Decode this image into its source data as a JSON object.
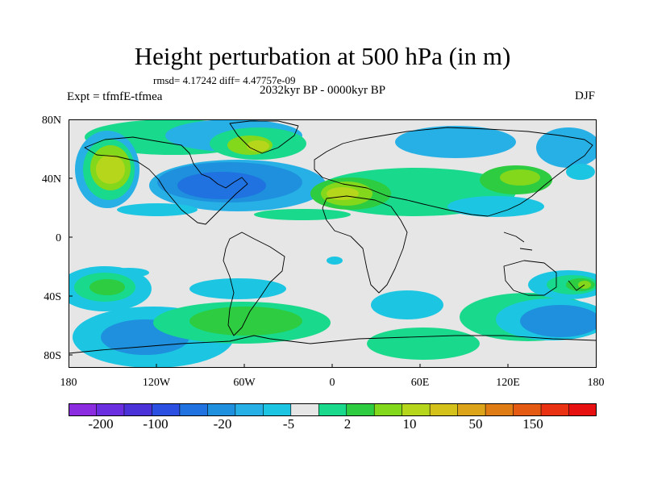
{
  "header": {
    "title": "Height perturbation at 500 hPa (in m)",
    "stats": "rmsd= 4.17242 diff= 4.47757e-09",
    "period": "2032kyr BP - 0000kyr BP",
    "experiment": "Expt = tfmfE-tfmea",
    "season": "DJF"
  },
  "axes": {
    "y_labels": [
      "80N",
      "40N",
      "0",
      "40S",
      "80S"
    ],
    "x_labels": [
      "180",
      "120W",
      "60W",
      "0",
      "60E",
      "120E",
      "180"
    ]
  },
  "colorbar": {
    "colors": [
      "#8c2ce0",
      "#6a2ee0",
      "#4b32d8",
      "#2b4fe0",
      "#1f72e0",
      "#1e90dd",
      "#27b0e6",
      "#1cc6e2",
      "#e6e6e6",
      "#19d98c",
      "#2ecc40",
      "#84d81c",
      "#b6d61c",
      "#d4c21a",
      "#dca418",
      "#e07c14",
      "#e55a12",
      "#e83212",
      "#e61010"
    ],
    "labels": [
      "-200",
      "-100",
      "-20",
      "-5",
      "2",
      "10",
      "50",
      "150"
    ]
  }
}
